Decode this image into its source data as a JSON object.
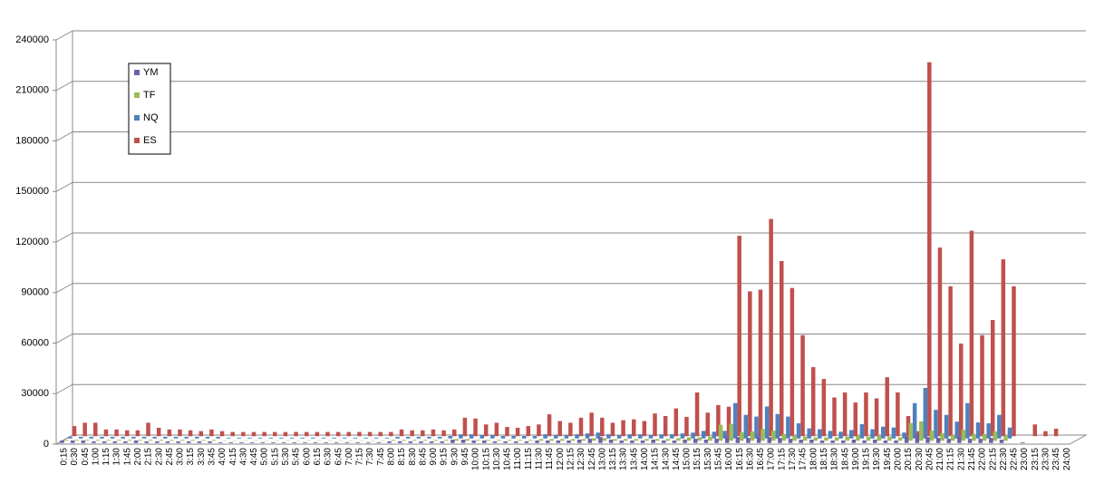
{
  "chart_data": {
    "type": "bar",
    "categories": [
      "0:15",
      "0:30",
      "0:45",
      "1:00",
      "1:15",
      "1:30",
      "1:45",
      "2:00",
      "2:15",
      "2:30",
      "2:45",
      "3:00",
      "3:15",
      "3:30",
      "3:45",
      "4:00",
      "4:15",
      "4:30",
      "4:45",
      "5:00",
      "5:15",
      "5:30",
      "5:45",
      "6:00",
      "6:15",
      "6:30",
      "6:45",
      "7:00",
      "7:15",
      "7:30",
      "7:45",
      "8:00",
      "8:15",
      "8:30",
      "8:45",
      "9:00",
      "9:15",
      "9:30",
      "9:45",
      "10:00",
      "10:15",
      "10:30",
      "10:45",
      "11:00",
      "11:15",
      "11:30",
      "11:45",
      "12:00",
      "12:15",
      "12:30",
      "12:45",
      "13:00",
      "13:15",
      "13:30",
      "13:45",
      "14:00",
      "14:15",
      "14:30",
      "14:45",
      "15:00",
      "15:15",
      "15:30",
      "15:45",
      "16:00",
      "16:15",
      "16:30",
      "16:45",
      "17:00",
      "17:15",
      "17:30",
      "17:45",
      "18:00",
      "18:15",
      "18:30",
      "18:45",
      "19:00",
      "19:15",
      "19:30",
      "19:45",
      "20:00",
      "20:15",
      "20:30",
      "20:45",
      "21:00",
      "21:15",
      "21:30",
      "21:45",
      "22:00",
      "22:15",
      "22:30",
      "22:45",
      "23:00",
      "23:15",
      "23:30",
      "23:45",
      "24:00"
    ],
    "series": [
      {
        "name": "YM",
        "color": "#7060a8",
        "values": [
          1500,
          1500,
          1500,
          1000,
          1000,
          1000,
          1000,
          1500,
          1000,
          1000,
          1000,
          1000,
          1000,
          1000,
          1000,
          500,
          500,
          500,
          500,
          500,
          500,
          500,
          500,
          500,
          500,
          500,
          500,
          500,
          500,
          500,
          500,
          1000,
          1000,
          1000,
          1000,
          1000,
          1000,
          2000,
          2000,
          1500,
          1500,
          1000,
          1000,
          1000,
          1000,
          1500,
          1500,
          1500,
          1500,
          2000,
          2500,
          3500,
          2000,
          1500,
          1500,
          1500,
          2000,
          1500,
          1500,
          2000,
          2500,
          2000,
          2500,
          4000,
          3500,
          3000,
          4000,
          3500,
          3000,
          2500,
          2000,
          2000,
          1500,
          1500,
          1500,
          2000,
          1500,
          2000,
          1500,
          1500,
          4000,
          5000,
          3500,
          3000,
          2500,
          4000,
          2500,
          2500,
          3000,
          2000,
          0,
          500,
          0,
          0,
          0,
          0
        ]
      },
      {
        "name": "TF",
        "color": "#9bbb59",
        "values": [
          500,
          500,
          500,
          500,
          500,
          500,
          500,
          500,
          500,
          500,
          500,
          500,
          500,
          500,
          500,
          200,
          200,
          200,
          200,
          200,
          200,
          200,
          200,
          200,
          200,
          200,
          200,
          200,
          200,
          200,
          200,
          500,
          500,
          500,
          500,
          500,
          500,
          1000,
          1000,
          500,
          500,
          500,
          500,
          500,
          500,
          1000,
          1000,
          1000,
          1000,
          1000,
          1500,
          1500,
          1000,
          1000,
          1000,
          1000,
          1000,
          1000,
          1500,
          2000,
          2000,
          2500,
          9500,
          10000,
          5000,
          5500,
          7000,
          6000,
          4000,
          3000,
          2500,
          2000,
          2000,
          2000,
          2500,
          3000,
          2500,
          3000,
          2500,
          2000,
          10500,
          11500,
          6000,
          4500,
          3500,
          6500,
          4000,
          4000,
          5500,
          3000,
          0,
          0,
          0,
          0,
          0,
          0
        ]
      },
      {
        "name": "NQ",
        "color": "#4f81bd",
        "values": [
          1000,
          1000,
          1000,
          1000,
          1000,
          1000,
          1000,
          1000,
          1000,
          1000,
          1000,
          1000,
          1000,
          1000,
          1000,
          500,
          500,
          500,
          500,
          500,
          500,
          500,
          500,
          500,
          500,
          500,
          500,
          500,
          500,
          500,
          500,
          1000,
          1000,
          1000,
          1000,
          1000,
          1500,
          2500,
          2500,
          2000,
          2000,
          1500,
          1500,
          1500,
          1500,
          2500,
          2000,
          2000,
          2500,
          3000,
          3500,
          2500,
          2000,
          2500,
          2500,
          2000,
          2500,
          2500,
          3000,
          3500,
          4500,
          4000,
          4500,
          21000,
          14000,
          13000,
          19000,
          14500,
          13000,
          9000,
          6000,
          5500,
          4500,
          4000,
          5000,
          8500,
          5500,
          7000,
          6500,
          3500,
          21000,
          30000,
          17000,
          14000,
          10000,
          21000,
          9500,
          9000,
          14000,
          6500,
          0,
          0,
          0,
          0,
          0,
          0
        ]
      },
      {
        "name": "ES",
        "color": "#c0504d",
        "values": [
          6000,
          8000,
          8000,
          4000,
          4000,
          3500,
          3500,
          8000,
          5000,
          4000,
          4000,
          3500,
          3000,
          4000,
          3000,
          2500,
          2500,
          2500,
          2500,
          2500,
          2500,
          2500,
          2500,
          2500,
          2500,
          2500,
          2500,
          2500,
          2500,
          2500,
          2500,
          4000,
          3500,
          3500,
          4000,
          3500,
          4000,
          11000,
          10500,
          7000,
          8000,
          5500,
          5000,
          6000,
          7000,
          13000,
          9000,
          8000,
          11000,
          14000,
          11000,
          8000,
          9500,
          10000,
          9000,
          13500,
          12000,
          16500,
          11500,
          26000,
          14000,
          18500,
          17500,
          119000,
          86000,
          87000,
          129000,
          104000,
          88000,
          60000,
          41000,
          34000,
          23000,
          26000,
          20000,
          26000,
          22500,
          35000,
          26000,
          12000,
          3000,
          222000,
          112000,
          89000,
          55000,
          122000,
          60000,
          69000,
          105000,
          89000,
          0,
          7000,
          3000,
          4500,
          0,
          0
        ]
      }
    ],
    "ylim": [
      0,
      240000
    ],
    "yticks": [
      0,
      30000,
      60000,
      90000,
      120000,
      150000,
      180000,
      210000,
      240000
    ],
    "grid": true
  }
}
